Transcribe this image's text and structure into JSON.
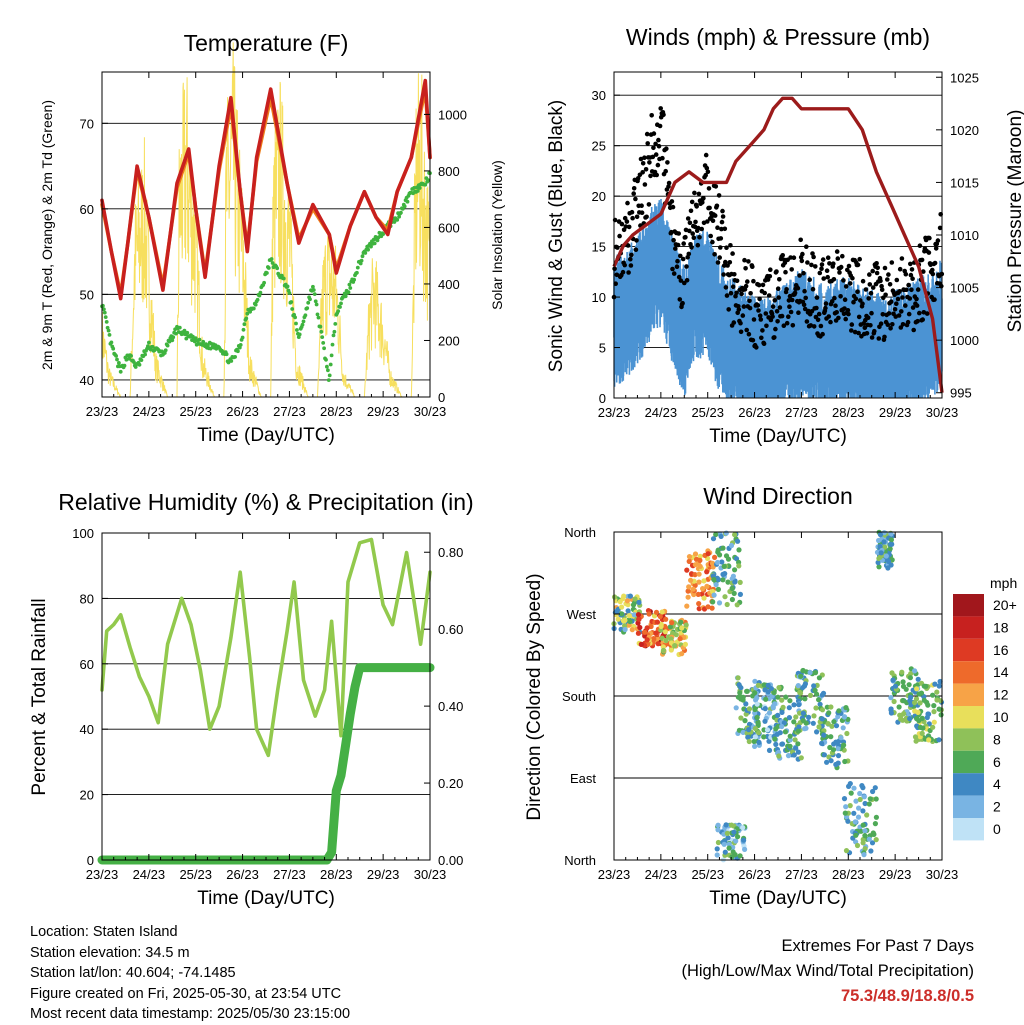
{
  "x_ticks": [
    "23/23",
    "24/23",
    "25/23",
    "26/23",
    "27/23",
    "28/23",
    "29/23",
    "30/23"
  ],
  "xlabel": "Time (Day/UTC)",
  "colors": {
    "temp2m": "#c8201e",
    "temp9m": "#ee7d1a",
    "dewpoint": "#3eb33e",
    "solar": "#f7df5e",
    "wind": "#4b93d3",
    "gust": "#000000",
    "pressure": "#9c1b1b",
    "rh": "#92c94d",
    "precip": "#45b045"
  },
  "panels": {
    "temp": {
      "title": "Temperature (F)",
      "ylabel": "2m & 9m T (Red, Orange) & 2m Td (Green)",
      "y2label": "Solar Insolation (Yellow)"
    },
    "wind": {
      "title": "Winds (mph) & Pressure (mb)",
      "ylabel": "Sonic Wind & Gust (Blue, Black)",
      "y2label": "Station Pressure (Maroon)"
    },
    "rh": {
      "title": "Relative Humidity (%) & Precipitation (in)",
      "ylabel": "Percent & Total Rainfall"
    },
    "dir": {
      "title": "Wind Direction",
      "ylabel": "Direction (Colored By Speed)"
    }
  },
  "chart_data": [
    {
      "type": "line",
      "title": "Temperature (F)",
      "xlabel": "Time (Day/UTC)",
      "ylabel": "2m & 9m T (Red, Orange) & 2m Td (Green)",
      "y2label": "Solar Insolation (Yellow)",
      "x": [
        23.0,
        23.2,
        23.4,
        23.55,
        23.75,
        24.0,
        24.3,
        24.6,
        24.85,
        25.0,
        25.2,
        25.5,
        25.75,
        25.95,
        26.1,
        26.3,
        26.6,
        26.95,
        27.2,
        27.5,
        27.85,
        28.0,
        28.3,
        28.6,
        28.85,
        29.1,
        29.3,
        29.6,
        29.9,
        30.0
      ],
      "ylim": [
        38,
        76
      ],
      "y_ticks": [
        40,
        50,
        60,
        70
      ],
      "y2lim": [
        0,
        1150
      ],
      "y2_ticks": [
        0,
        200,
        400,
        600,
        800,
        1000
      ],
      "series": [
        {
          "name": "2m T",
          "axis": "left",
          "values": [
            61,
            55,
            49.5,
            56,
            65,
            59,
            50.5,
            63,
            67,
            60,
            52,
            65,
            73,
            62,
            55,
            66,
            74,
            63,
            56,
            60.5,
            57,
            52.5,
            58,
            62,
            59,
            57,
            62,
            66,
            75,
            66
          ]
        },
        {
          "name": "9m T",
          "axis": "left",
          "values": [
            60.5,
            55,
            50,
            56,
            64.5,
            59,
            51,
            62.5,
            66.5,
            60,
            52.5,
            64.5,
            72,
            62,
            55.5,
            65.5,
            73,
            63,
            56.5,
            60,
            57,
            53,
            58,
            62,
            59,
            57.5,
            62,
            66,
            74,
            66
          ]
        },
        {
          "name": "2m Td",
          "axis": "left",
          "values": [
            49,
            44,
            41,
            43,
            41.5,
            44,
            43,
            46,
            45,
            44.5,
            44,
            44,
            42,
            44,
            48,
            49,
            54,
            51,
            45,
            51,
            40,
            48,
            51,
            55,
            56.5,
            58,
            59,
            62,
            63,
            64
          ]
        },
        {
          "name": "Solar",
          "axis": "right",
          "x": [
            23.0,
            23.15,
            23.4,
            23.6,
            23.7,
            23.9,
            24.0,
            24.15,
            24.4,
            24.6,
            24.65,
            24.8,
            25.0,
            25.15,
            25.4,
            25.6,
            25.65,
            25.8,
            26.0,
            26.15,
            26.4,
            26.6,
            26.65,
            26.8,
            27.0,
            27.15,
            27.4,
            27.6,
            27.7,
            27.8,
            28.0,
            28.15,
            28.4,
            28.6,
            28.7,
            28.8,
            29.0,
            29.15,
            29.4,
            29.6,
            29.7,
            29.8,
            30.0
          ],
          "values": [
            300,
            100,
            0,
            0,
            650,
            850,
            550,
            150,
            0,
            0,
            900,
            1100,
            700,
            150,
            0,
            0,
            950,
            1150,
            700,
            150,
            0,
            0,
            850,
            1050,
            750,
            150,
            0,
            0,
            450,
            600,
            500,
            100,
            0,
            0,
            350,
            500,
            300,
            100,
            0,
            0,
            1000,
            1100,
            600
          ]
        }
      ]
    },
    {
      "type": "line",
      "title": "Winds (mph) & Pressure (mb)",
      "xlabel": "Time (Day/UTC)",
      "ylabel": "Sonic Wind & Gust (Blue, Black)",
      "y2label": "Station Pressure (Maroon)",
      "x": [
        23.0,
        23.3,
        23.6,
        23.8,
        24.0,
        24.2,
        24.5,
        24.7,
        25.0,
        25.2,
        25.5,
        25.8,
        26.0,
        26.3,
        26.5,
        26.8,
        27.0,
        27.3,
        27.5,
        27.8,
        28.0,
        28.3,
        28.5,
        28.8,
        29.0,
        29.2,
        29.5,
        29.8,
        30.0
      ],
      "ylim": [
        0,
        32.3
      ],
      "y_ticks": [
        0,
        5,
        10,
        15,
        20,
        25,
        30
      ],
      "y2lim": [
        994.5,
        1025.5
      ],
      "y2_ticks": [
        995,
        1000,
        1005,
        1010,
        1015,
        1020,
        1025
      ],
      "series": [
        {
          "name": "Sonic Wind",
          "axis": "left",
          "values": [
            9,
            10,
            12,
            14,
            15,
            12,
            8,
            11,
            12,
            9,
            7,
            6,
            5,
            5,
            6,
            7,
            8,
            7,
            6,
            7,
            7,
            6,
            6,
            5,
            6,
            6,
            7,
            8,
            9
          ]
        },
        {
          "name": "Gust",
          "axis": "left",
          "values": [
            14,
            16,
            20,
            24,
            27,
            17,
            12,
            17,
            21,
            17,
            11,
            10,
            9,
            9,
            10,
            11,
            12,
            10,
            10,
            11,
            10,
            10,
            10,
            9,
            10,
            10,
            11,
            13,
            15
          ]
        },
        {
          "name": "Station Pressure",
          "axis": "right",
          "x": [
            23.0,
            23.2,
            23.4,
            23.7,
            24.0,
            24.3,
            24.6,
            24.9,
            25.2,
            25.4,
            25.6,
            25.8,
            26.0,
            26.2,
            26.4,
            26.6,
            26.8,
            27.0,
            27.2,
            27.5,
            27.8,
            28.0,
            28.3,
            28.6,
            28.9,
            29.2,
            29.5,
            29.8,
            30.0
          ],
          "values": [
            1007,
            1009,
            1010,
            1011,
            1012,
            1015,
            1016,
            1015,
            1015,
            1015,
            1017,
            1018,
            1019,
            1020,
            1022,
            1023,
            1023,
            1022,
            1022,
            1022,
            1022,
            1022,
            1020,
            1016,
            1013,
            1010,
            1007,
            1002,
            995
          ]
        }
      ]
    },
    {
      "type": "line",
      "title": "Relative Humidity (%) & Precipitation (in)",
      "xlabel": "Time (Day/UTC)",
      "ylabel": "Percent & Total Rainfall",
      "x": [
        23.0,
        23.1,
        23.25,
        23.4,
        23.6,
        23.8,
        24.0,
        24.2,
        24.4,
        24.7,
        24.9,
        25.1,
        25.3,
        25.5,
        25.75,
        25.95,
        26.15,
        26.3,
        26.55,
        26.75,
        26.95,
        27.1,
        27.3,
        27.55,
        27.75,
        27.9,
        28.1,
        28.25,
        28.5,
        28.75,
        29.0,
        29.2,
        29.5,
        29.8,
        30.0
      ],
      "ylim": [
        0,
        100
      ],
      "y_ticks": [
        0,
        20,
        40,
        60,
        80,
        100
      ],
      "y2lim": [
        0,
        0.85
      ],
      "y2_ticks": [
        "0.00",
        "0.20",
        "0.40",
        "0.60",
        "0.80"
      ],
      "series": [
        {
          "name": "Relative Humidity",
          "axis": "left",
          "values": [
            52,
            70,
            72,
            75,
            65,
            56,
            50,
            42,
            66,
            80,
            72,
            58,
            40,
            47,
            68,
            88,
            62,
            40,
            32,
            52,
            70,
            85,
            55,
            44,
            52,
            73,
            38,
            85,
            97,
            98,
            78,
            72,
            94,
            66,
            88
          ]
        },
        {
          "name": "Total Rainfall",
          "axis": "right",
          "x": [
            23.0,
            27.0,
            27.8,
            27.9,
            28.0,
            28.1,
            28.2,
            28.3,
            28.4,
            28.5,
            29.0,
            30.0
          ],
          "values": [
            0,
            0,
            0,
            0.02,
            0.18,
            0.22,
            0.3,
            0.38,
            0.45,
            0.5,
            0.5,
            0.5
          ]
        }
      ]
    },
    {
      "type": "scatter",
      "title": "Wind Direction",
      "xlabel": "Time (Day/UTC)",
      "ylabel": "Direction (Colored By Speed)",
      "y_ticks": [
        "North",
        "West",
        "South",
        "East",
        "North"
      ],
      "ylim": [
        0,
        360
      ],
      "colorbar": {
        "title": "mph",
        "labels": [
          "20+",
          "18",
          "16",
          "14",
          "12",
          "10",
          "8",
          "6",
          "4",
          "2",
          "0"
        ],
        "colors": [
          "#a1171c",
          "#c7211f",
          "#de3a23",
          "#ee6a2b",
          "#f7a347",
          "#e8df5b",
          "#8fc159",
          "#4fa957",
          "#3f88c3",
          "#79b4e3",
          "#bfe2f6"
        ]
      },
      "clusters": [
        {
          "x": [
            23.0,
            23.55
          ],
          "dir": [
            250,
            290
          ],
          "speed": [
            2,
            12
          ]
        },
        {
          "x": [
            23.5,
            24.1
          ],
          "dir": [
            235,
            275
          ],
          "speed": [
            10,
            20
          ]
        },
        {
          "x": [
            24.0,
            24.55
          ],
          "dir": [
            225,
            265
          ],
          "speed": [
            6,
            14
          ]
        },
        {
          "x": [
            24.55,
            25.15
          ],
          "dir": [
            275,
            340
          ],
          "speed": [
            10,
            16
          ]
        },
        {
          "x": [
            25.1,
            25.7
          ],
          "dir": [
            280,
            360
          ],
          "speed": [
            2,
            8
          ]
        },
        {
          "x": [
            25.2,
            25.8
          ],
          "dir": [
            0,
            40
          ],
          "speed": [
            0,
            8
          ]
        },
        {
          "x": [
            25.6,
            26.1
          ],
          "dir": [
            130,
            200
          ],
          "speed": [
            2,
            8
          ]
        },
        {
          "x": [
            26.0,
            26.5
          ],
          "dir": [
            120,
            195
          ],
          "speed": [
            0,
            8
          ]
        },
        {
          "x": [
            26.4,
            27.0
          ],
          "dir": [
            110,
            190
          ],
          "speed": [
            2,
            8
          ]
        },
        {
          "x": [
            26.9,
            27.5
          ],
          "dir": [
            140,
            210
          ],
          "speed": [
            2,
            8
          ]
        },
        {
          "x": [
            27.4,
            28.0
          ],
          "dir": [
            100,
            170
          ],
          "speed": [
            2,
            8
          ]
        },
        {
          "x": [
            27.9,
            28.6
          ],
          "dir": [
            5,
            85
          ],
          "speed": [
            2,
            8
          ]
        },
        {
          "x": [
            28.6,
            28.95
          ],
          "dir": [
            320,
            360
          ],
          "speed": [
            2,
            8
          ]
        },
        {
          "x": [
            28.9,
            29.5
          ],
          "dir": [
            150,
            210
          ],
          "speed": [
            2,
            8
          ]
        },
        {
          "x": [
            29.4,
            30.0
          ],
          "dir": [
            130,
            200
          ],
          "speed": [
            4,
            10
          ]
        }
      ]
    }
  ],
  "info": {
    "location": "Location: Staten Island",
    "elevation": "Station elevation: 34.5 m",
    "latlon": "Station lat/lon: 40.604; -74.1485",
    "created": "Figure created on Fri, 2025-05-30, at 23:54 UTC",
    "recent": "Most recent data timestamp: 2025/05/30 23:15:00"
  },
  "extremes": {
    "line1": "Extremes For Past 7 Days",
    "line2": "(High/Low/Max Wind/Total Precipitation)",
    "values": "75.3/48.9/18.8/0.5"
  }
}
